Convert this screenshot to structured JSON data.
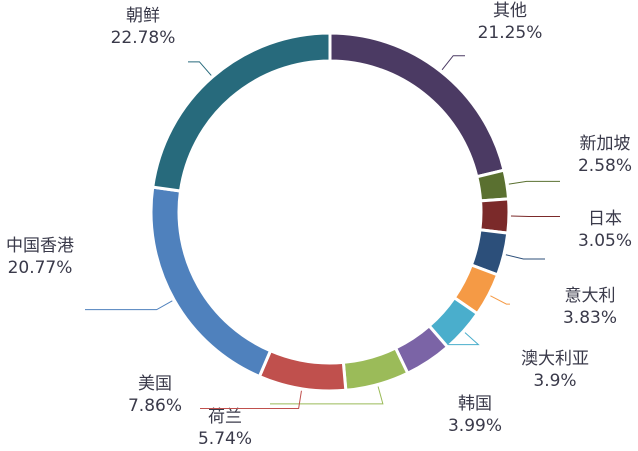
{
  "chart_data": {
    "type": "donut",
    "categories": [
      "其他",
      "新加坡",
      "日本",
      "意大利",
      "澳大利亚",
      "韩国",
      null,
      "荷兰",
      "美国",
      "中国香港",
      "朝鲜"
    ],
    "values": [
      21.25,
      2.58,
      3.05,
      3.83,
      3.9,
      3.99,
      4.25,
      5.74,
      7.86,
      20.77,
      22.78
    ],
    "value_labels": [
      "21.25%",
      "2.58%",
      "3.05%",
      "3.83%",
      "3.9%",
      "3.99%",
      null,
      "5.74%",
      "7.86%",
      "20.77%",
      "22.78%"
    ],
    "colors": [
      "#4b3a63",
      "#5a7030",
      "#7b2a2a",
      "#2c4f7a",
      "#f59a45",
      "#4aaecc",
      "#7b64a6",
      "#9bbb59",
      "#c0504d",
      "#4f81bd",
      "#276a7c"
    ]
  }
}
